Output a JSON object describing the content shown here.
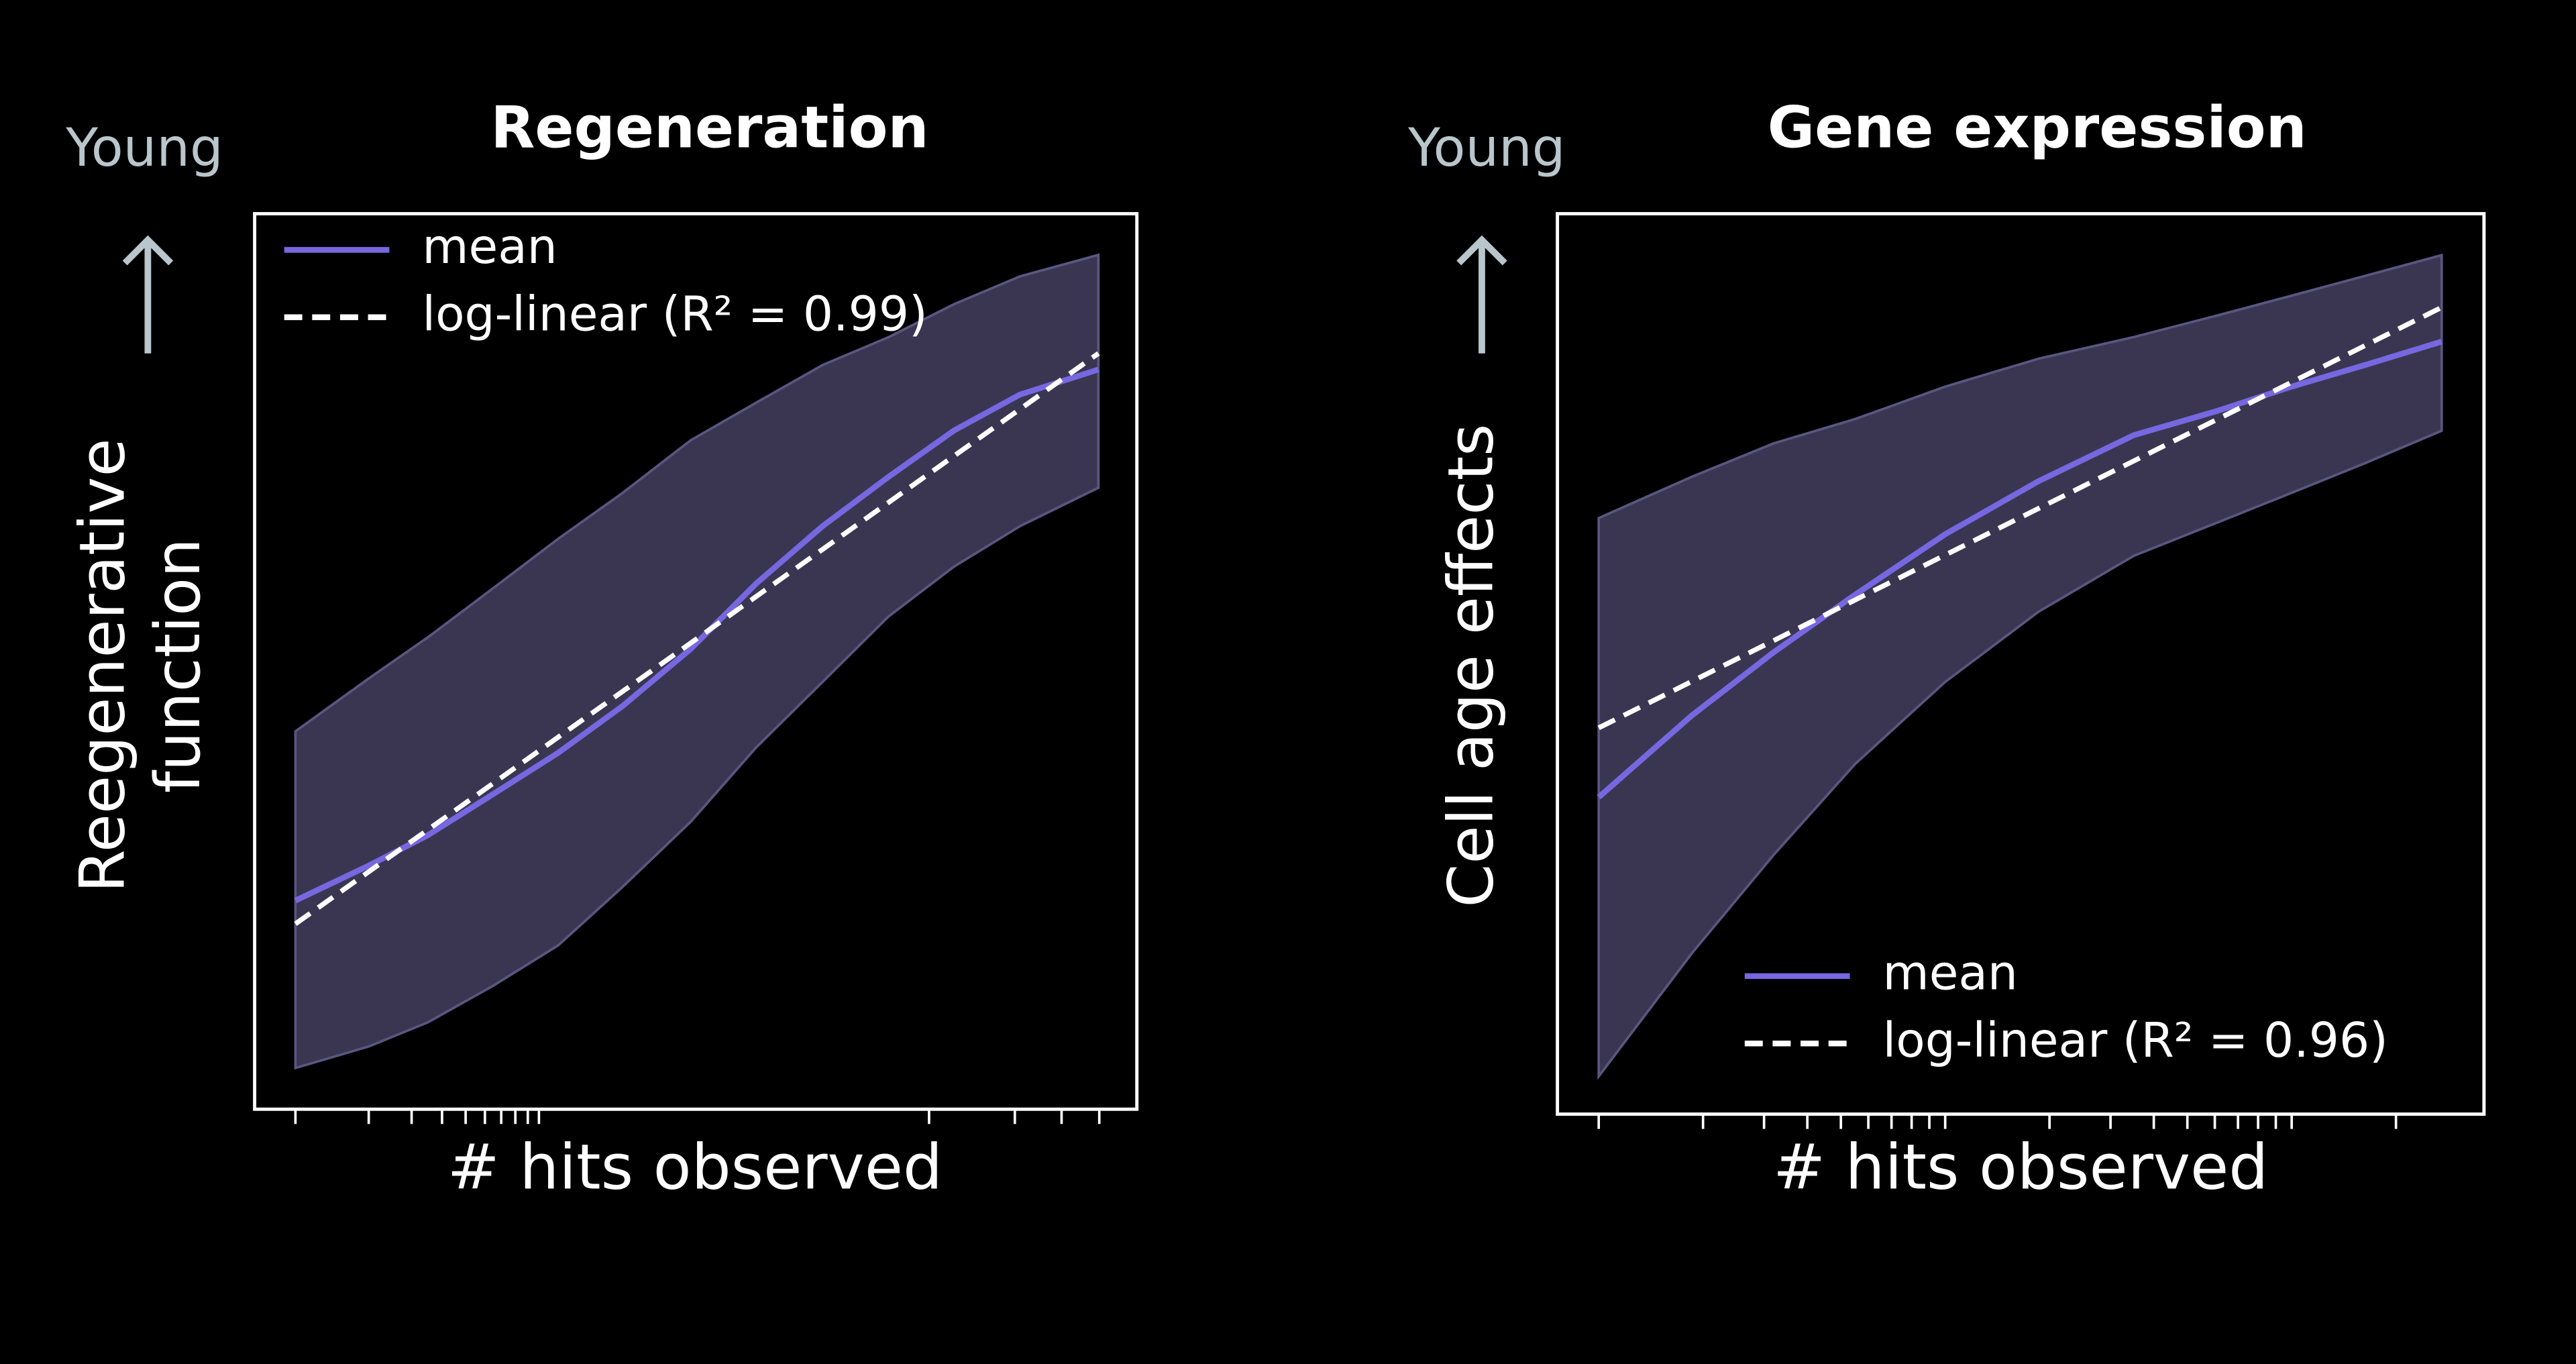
{
  "chart_data": [
    {
      "type": "line",
      "title": "Regeneration",
      "ylabel_top": "Young",
      "ylabel": [
        "Reegenerative",
        "function"
      ],
      "xlabel": "# hits observed",
      "log_x": true,
      "legend": "upper left",
      "xlim": [
        0.68,
        2853
      ],
      "xticks": [
        1,
        2,
        3,
        4,
        5,
        6,
        7,
        8,
        9,
        10,
        400,
        900,
        1400,
        2000
      ],
      "ylim": [
        0,
        100
      ],
      "band": {
        "color": "#3a3651",
        "edge": "#5b5680",
        "x": [
          1,
          2,
          3.5,
          6.5,
          12,
          22,
          42,
          78,
          146,
          272,
          507,
          944,
          1983
        ],
        "upper": [
          42.2,
          48.1,
          52.7,
          58.2,
          63.7,
          68.8,
          74.7,
          78.9,
          83.1,
          86.2,
          89.9,
          93.0,
          95.4
        ],
        "lower": [
          4.6,
          7.0,
          9.7,
          13.8,
          18.3,
          24.8,
          32.1,
          40.4,
          47.7,
          55.0,
          60.6,
          65.1,
          69.4
        ]
      },
      "series": [
        {
          "name": "mean",
          "color": "#7767e0",
          "x": [
            1,
            2,
            3.5,
            6.5,
            12,
            22,
            42,
            78,
            146,
            272,
            507,
            944,
            1983
          ],
          "values": [
            23.3,
            27.2,
            30.6,
            35.2,
            39.8,
            45.0,
            51.4,
            58.7,
            65.1,
            70.6,
            75.8,
            79.8,
            82.6
          ]
        },
        {
          "name": "log-linear (R² = 0.99)",
          "color": "#ffffff",
          "dashed": true,
          "x": [
            1,
            1983
          ],
          "values": [
            20.7,
            84.4
          ]
        }
      ]
    },
    {
      "type": "line",
      "title": "Gene expression",
      "ylabel_top": "Young",
      "ylabel": [
        "Cell age effects"
      ],
      "xlabel": "# hits observed",
      "log_x": true,
      "legend": "lower right",
      "xlim": [
        0.76,
        359
      ],
      "xticks": [
        1,
        2,
        3,
        4,
        5,
        6,
        7,
        8,
        9,
        10,
        20,
        30,
        40,
        50,
        60,
        70,
        80,
        90,
        100,
        200
      ],
      "ylim": [
        0,
        100
      ],
      "band": {
        "color": "#3a3651",
        "edge": "#5b5680",
        "x": [
          1,
          1.86,
          3.2,
          5.5,
          10,
          18.6,
          35,
          61,
          100,
          163,
          271
        ],
        "upper": [
          66.2,
          70.8,
          74.5,
          77.2,
          80.8,
          83.9,
          86.3,
          88.7,
          90.9,
          93.1,
          95.4
        ],
        "lower": [
          4.2,
          17.9,
          28.8,
          38.9,
          48.0,
          55.8,
          62.0,
          65.7,
          69.0,
          72.3,
          75.9
        ]
      },
      "series": [
        {
          "name": "mean",
          "color": "#7767e0",
          "x": [
            1,
            1.86,
            3.2,
            5.5,
            10,
            18.6,
            35,
            61,
            100,
            163,
            271
          ],
          "values": [
            35.2,
            44.3,
            51.3,
            57.7,
            64.4,
            70.3,
            75.4,
            78.1,
            80.8,
            83.2,
            85.8
          ]
        },
        {
          "name": "log-linear (R² = 0.96)",
          "color": "#ffffff",
          "dashed": true,
          "x": [
            1,
            271
          ],
          "values": [
            42.9,
            89.6
          ]
        }
      ]
    }
  ]
}
